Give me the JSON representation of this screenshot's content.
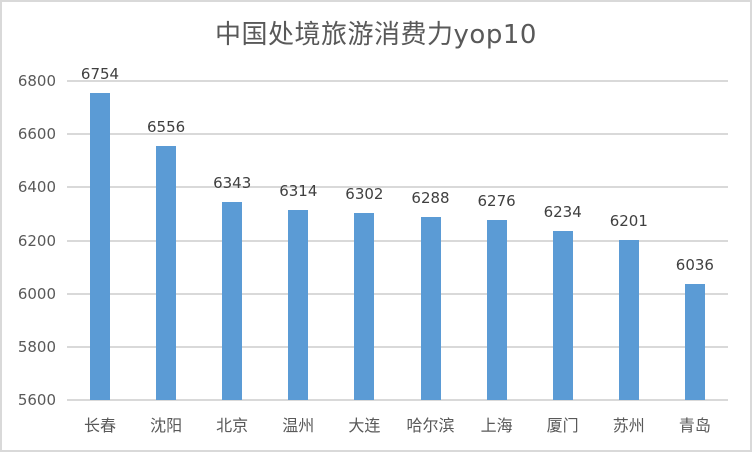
{
  "chart_data": {
    "type": "bar",
    "title": "中国处境旅游消费力yop10",
    "xlabel": "",
    "ylabel": "",
    "categories": [
      "长春",
      "沈阳",
      "北京",
      "温州",
      "大连",
      "哈尔滨",
      "上海",
      "厦门",
      "苏州",
      "青岛"
    ],
    "values": [
      6754,
      6556,
      6343,
      6314,
      6302,
      6288,
      6276,
      6234,
      6201,
      6036
    ],
    "value_labels": [
      "6754",
      "6556",
      "6343",
      "6314",
      "6302",
      "6288",
      "6276",
      "6234",
      "6201",
      "6036"
    ],
    "ylim": [
      5600,
      6800
    ],
    "yticks": [
      "6800",
      "6600",
      "6400",
      "6200",
      "6000",
      "5800",
      "5600"
    ],
    "grid": true,
    "legend": "none",
    "bar_color": "#5b9bd5"
  }
}
